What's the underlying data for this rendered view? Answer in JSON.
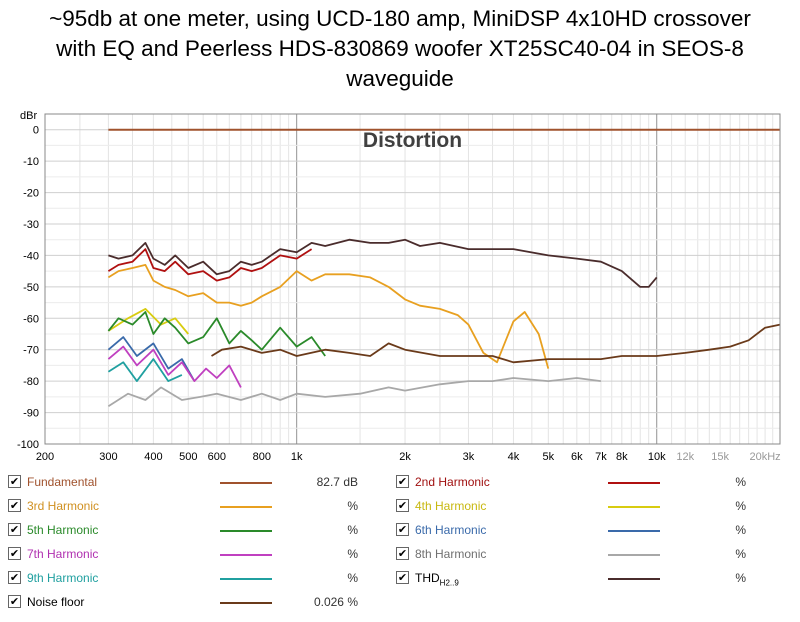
{
  "title_lines": [
    "~95db at one meter, using UCD-180 amp, MiniDSP 4x10HD crossover",
    "with EQ and Peerless HDS-830869 woofer XT25SC40-04 in SEOS-8",
    "waveguide"
  ],
  "chart_data": {
    "type": "line",
    "title": "Distortion",
    "ylabel": "dBr",
    "xlabel": "",
    "x_scale": "log",
    "xlim": [
      200,
      22000
    ],
    "ylim": [
      -100,
      5
    ],
    "grid": true,
    "y_ticks": [
      "0",
      "-10",
      "-20",
      "-30",
      "-40",
      "-50",
      "-60",
      "-70",
      "-80",
      "-90",
      "-100"
    ],
    "y_tick_values": [
      0,
      -10,
      -20,
      -30,
      -40,
      -50,
      -60,
      -70,
      -80,
      -90,
      -100
    ],
    "x_ticks": [
      "200",
      "300",
      "400",
      "500",
      "600",
      "800",
      "1k",
      "2k",
      "3k",
      "4k",
      "5k",
      "6k",
      "7k",
      "8k",
      "10k",
      "12k",
      "15k",
      "20kHz"
    ],
    "x_tick_values": [
      200,
      300,
      400,
      500,
      600,
      800,
      1000,
      2000,
      3000,
      4000,
      5000,
      6000,
      7000,
      8000,
      10000,
      12000,
      15000,
      20000
    ],
    "series": [
      {
        "name": "Fundamental",
        "color": "#a0522d",
        "x": [
          300,
          22000
        ],
        "y": [
          0,
          0
        ]
      },
      {
        "name": "THD",
        "color": "#4a2c2c",
        "x": [
          300,
          320,
          350,
          380,
          400,
          430,
          460,
          500,
          550,
          600,
          650,
          700,
          750,
          800,
          900,
          1000,
          1100,
          1200,
          1400,
          1600,
          1800,
          2000,
          2200,
          2500,
          3000,
          3500,
          4000,
          5000,
          6000,
          7000,
          8000,
          9000,
          9500,
          10000
        ],
        "y": [
          -40,
          -41,
          -40,
          -36,
          -41,
          -43,
          -40,
          -44,
          -42,
          -46,
          -45,
          -42,
          -43,
          -42,
          -38,
          -39,
          -36,
          -37,
          -35,
          -36,
          -36,
          -35,
          -37,
          -36,
          -38,
          -38,
          -38,
          -40,
          -41,
          -42,
          -45,
          -50,
          -50,
          -47
        ]
      },
      {
        "name": "2nd Harmonic",
        "color": "#b01010",
        "x": [
          300,
          320,
          350,
          380,
          400,
          430,
          460,
          500,
          550,
          600,
          650,
          700,
          750,
          800,
          900,
          1000,
          1100
        ],
        "y": [
          -45,
          -43,
          -42,
          -38,
          -44,
          -45,
          -42,
          -46,
          -45,
          -48,
          -47,
          -44,
          -45,
          -44,
          -40,
          -41,
          -38
        ]
      },
      {
        "name": "3rd Harmonic",
        "color": "#e8a020",
        "x": [
          300,
          320,
          350,
          380,
          400,
          430,
          460,
          500,
          550,
          600,
          650,
          700,
          750,
          800,
          900,
          1000,
          1100,
          1200,
          1400,
          1600,
          1800,
          2000,
          2200,
          2500,
          2800,
          3000,
          3300,
          3600,
          4000,
          4300,
          4700,
          5000
        ],
        "y": [
          -47,
          -45,
          -44,
          -43,
          -48,
          -50,
          -51,
          -53,
          -52,
          -55,
          -55,
          -56,
          -55,
          -53,
          -50,
          -45,
          -48,
          -46,
          -46,
          -47,
          -50,
          -54,
          -56,
          -57,
          -59,
          -62,
          -71,
          -74,
          -61,
          -58,
          -65,
          -76
        ]
      },
      {
        "name": "4th Harmonic",
        "color": "#d8cc10",
        "x": [
          300,
          340,
          380,
          420,
          460,
          500
        ],
        "y": [
          -64,
          -60,
          -57,
          -62,
          -60,
          -65
        ]
      },
      {
        "name": "5th Harmonic",
        "color": "#2a8a2a",
        "x": [
          300,
          320,
          350,
          380,
          400,
          430,
          460,
          500,
          550,
          600,
          650,
          700,
          750,
          800,
          900,
          1000,
          1100,
          1200
        ],
        "y": [
          -64,
          -60,
          -62,
          -58,
          -65,
          -60,
          -63,
          -68,
          -66,
          -60,
          -68,
          -64,
          -67,
          -70,
          -63,
          -69,
          -66,
          -72
        ]
      },
      {
        "name": "6th Harmonic",
        "color": "#3a6aaa",
        "x": [
          300,
          330,
          360,
          400,
          440,
          480,
          520
        ],
        "y": [
          -70,
          -66,
          -72,
          -68,
          -76,
          -73,
          -80
        ]
      },
      {
        "name": "7th Harmonic",
        "color": "#c040c0",
        "x": [
          300,
          330,
          360,
          400,
          440,
          480,
          520,
          560,
          600,
          650,
          700
        ],
        "y": [
          -73,
          -69,
          -75,
          -70,
          -78,
          -74,
          -80,
          -76,
          -79,
          -75,
          -82
        ]
      },
      {
        "name": "8th Harmonic",
        "color": "#a8a8a8",
        "x": [
          300,
          340,
          380,
          420,
          480,
          540,
          600,
          700,
          800,
          900,
          1000,
          1200,
          1500,
          1800,
          2000,
          2500,
          3000,
          3500,
          4000,
          5000,
          6000,
          7000
        ],
        "y": [
          -88,
          -84,
          -86,
          -82,
          -86,
          -85,
          -84,
          -86,
          -84,
          -86,
          -84,
          -85,
          -84,
          -82,
          -83,
          -81,
          -80,
          -80,
          -79,
          -80,
          -79,
          -80
        ]
      },
      {
        "name": "9th Harmonic",
        "color": "#20a0a0",
        "x": [
          300,
          330,
          360,
          400,
          440,
          480
        ],
        "y": [
          -77,
          -74,
          -80,
          -73,
          -80,
          -78
        ]
      },
      {
        "name": "Noise floor",
        "color": "#6a3a1a",
        "x": [
          580,
          620,
          700,
          800,
          900,
          1000,
          1200,
          1400,
          1600,
          1800,
          2000,
          2500,
          3000,
          3500,
          4000,
          5000,
          6000,
          7000,
          8000,
          9000,
          10000,
          12000,
          14000,
          16000,
          18000,
          20000,
          22000
        ],
        "y": [
          -72,
          -70,
          -69,
          -71,
          -70,
          -72,
          -70,
          -71,
          -72,
          -68,
          -70,
          -72,
          -72,
          -72,
          -74,
          -73,
          -73,
          -73,
          -72,
          -72,
          -72,
          -71,
          -70,
          -69,
          -67,
          -63,
          -62
        ]
      }
    ]
  },
  "legend": [
    {
      "name": "Fundamental",
      "sub": "",
      "color": "#a0522d",
      "value": "82.7 dB",
      "text_color": "#a0522d",
      "col": 0,
      "row": 0
    },
    {
      "name": "2nd Harmonic",
      "sub": "",
      "color": "#b01010",
      "value": "%",
      "text_color": "#a01010",
      "col": 1,
      "row": 0
    },
    {
      "name": "3rd Harmonic",
      "sub": "",
      "color": "#e8a020",
      "value": "%",
      "text_color": "#d09020",
      "col": 0,
      "row": 1
    },
    {
      "name": "4th Harmonic",
      "sub": "",
      "color": "#d8cc10",
      "value": "%",
      "text_color": "#c8b810",
      "col": 1,
      "row": 1
    },
    {
      "name": "5th Harmonic",
      "sub": "",
      "color": "#2a8a2a",
      "value": "%",
      "text_color": "#2a8a2a",
      "col": 0,
      "row": 2
    },
    {
      "name": "6th Harmonic",
      "sub": "",
      "color": "#3a6aaa",
      "value": "%",
      "text_color": "#3a6aaa",
      "col": 1,
      "row": 2
    },
    {
      "name": "7th Harmonic",
      "sub": "",
      "color": "#c040c0",
      "value": "%",
      "text_color": "#b030b0",
      "col": 0,
      "row": 3
    },
    {
      "name": "8th Harmonic",
      "sub": "",
      "color": "#a8a8a8",
      "value": "%",
      "text_color": "#707070",
      "col": 1,
      "row": 3
    },
    {
      "name": "9th Harmonic",
      "sub": "",
      "color": "#20a0a0",
      "value": "%",
      "text_color": "#20a0a0",
      "col": 0,
      "row": 4
    },
    {
      "name": "THD",
      "sub": "H2..9",
      "color": "#4a2c2c",
      "value": "%",
      "text_color": "#000000",
      "col": 1,
      "row": 4
    },
    {
      "name": "Noise floor",
      "sub": "",
      "color": "#6a3a1a",
      "value": "0.026 %",
      "text_color": "#000000",
      "col": 0,
      "row": 5
    }
  ]
}
